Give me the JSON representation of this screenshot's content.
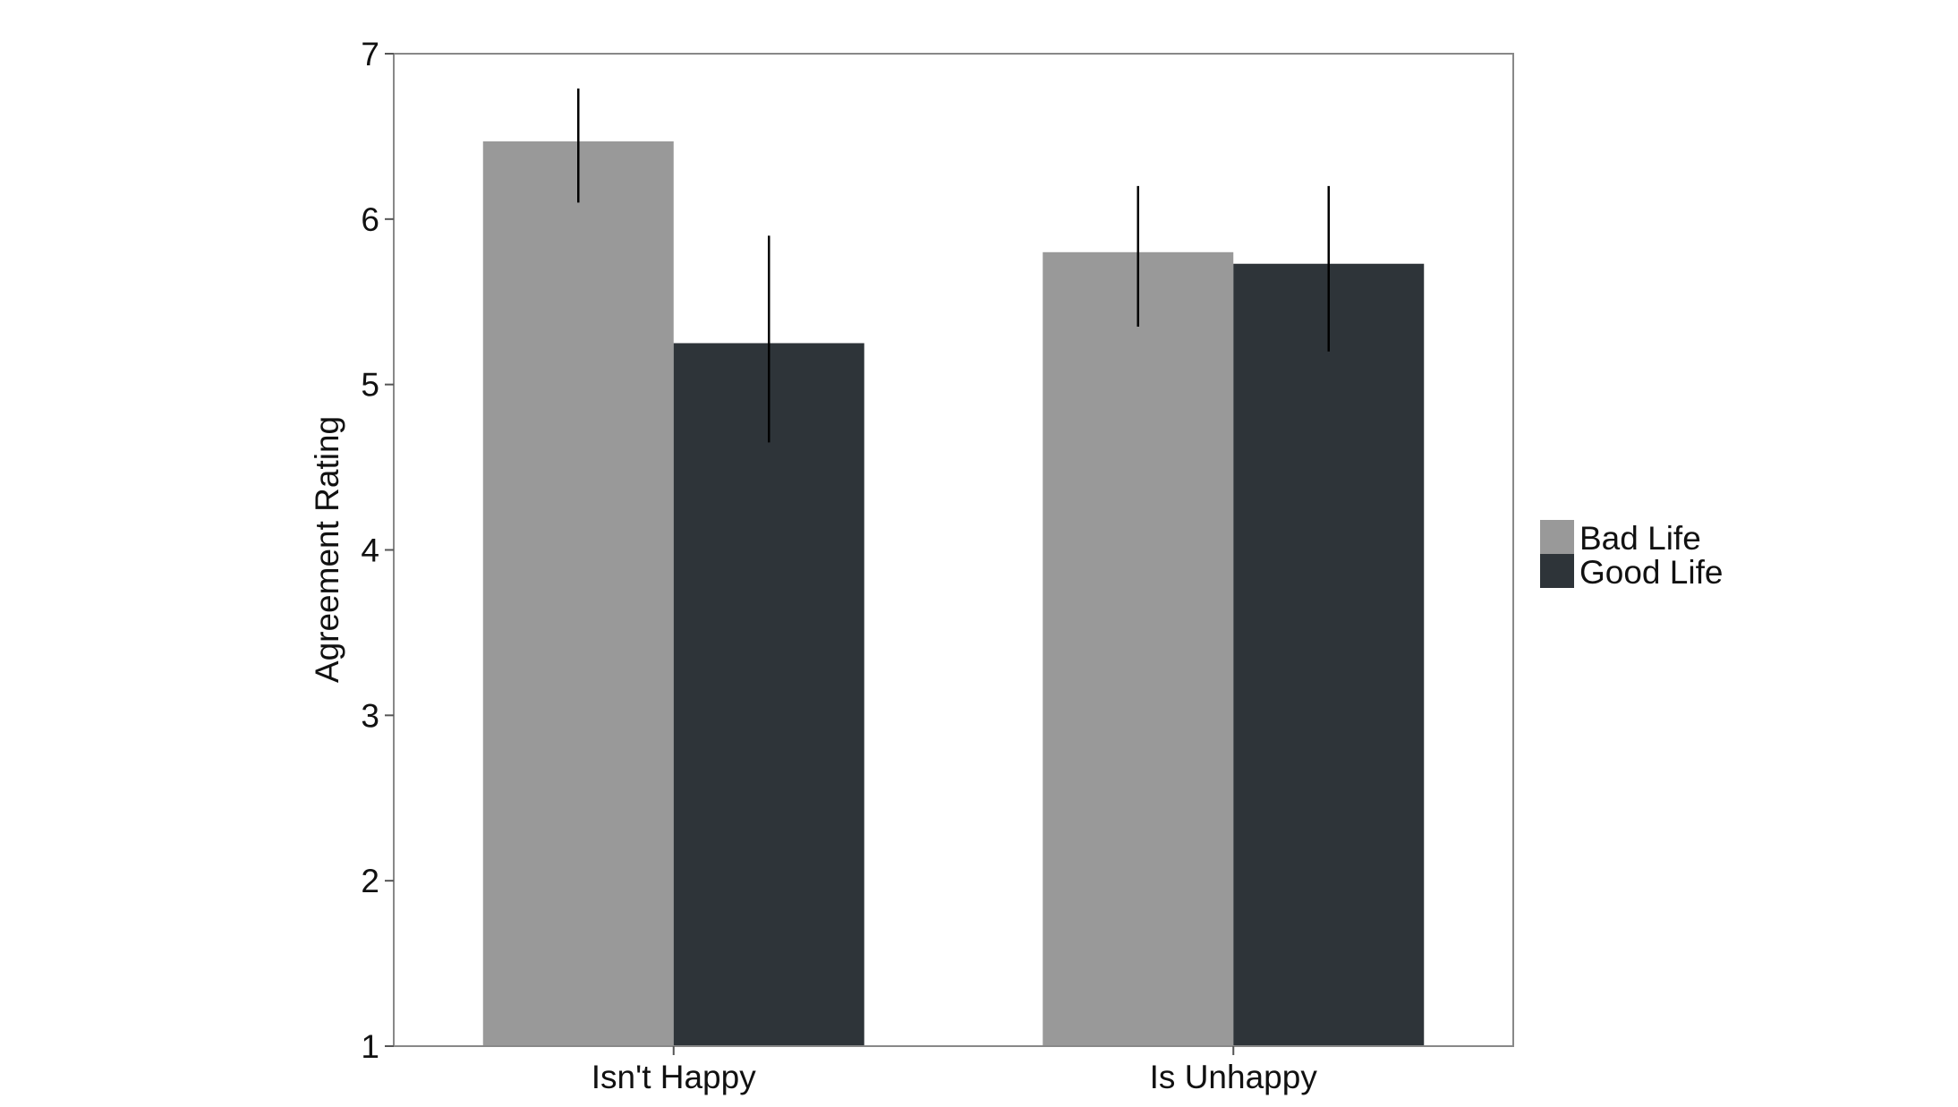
{
  "chart_data": {
    "type": "bar",
    "title": "",
    "xlabel": "",
    "ylabel": "Agreement Rating",
    "ylim": [
      1,
      7
    ],
    "yticks": [
      1,
      2,
      3,
      4,
      5,
      6,
      7
    ],
    "grid": false,
    "legend_position": "right",
    "categories": [
      "Isn't Happy",
      "Is Unhappy"
    ],
    "series": [
      {
        "name": "Bad Life",
        "color": "#999999",
        "values": [
          6.47,
          5.8
        ],
        "error_low": [
          6.1,
          5.35
        ],
        "error_high": [
          6.79,
          6.2
        ]
      },
      {
        "name": "Good Life",
        "color": "#2e3439",
        "values": [
          5.25,
          5.73
        ],
        "error_low": [
          4.65,
          5.2
        ],
        "error_high": [
          5.9,
          6.2
        ]
      }
    ]
  }
}
